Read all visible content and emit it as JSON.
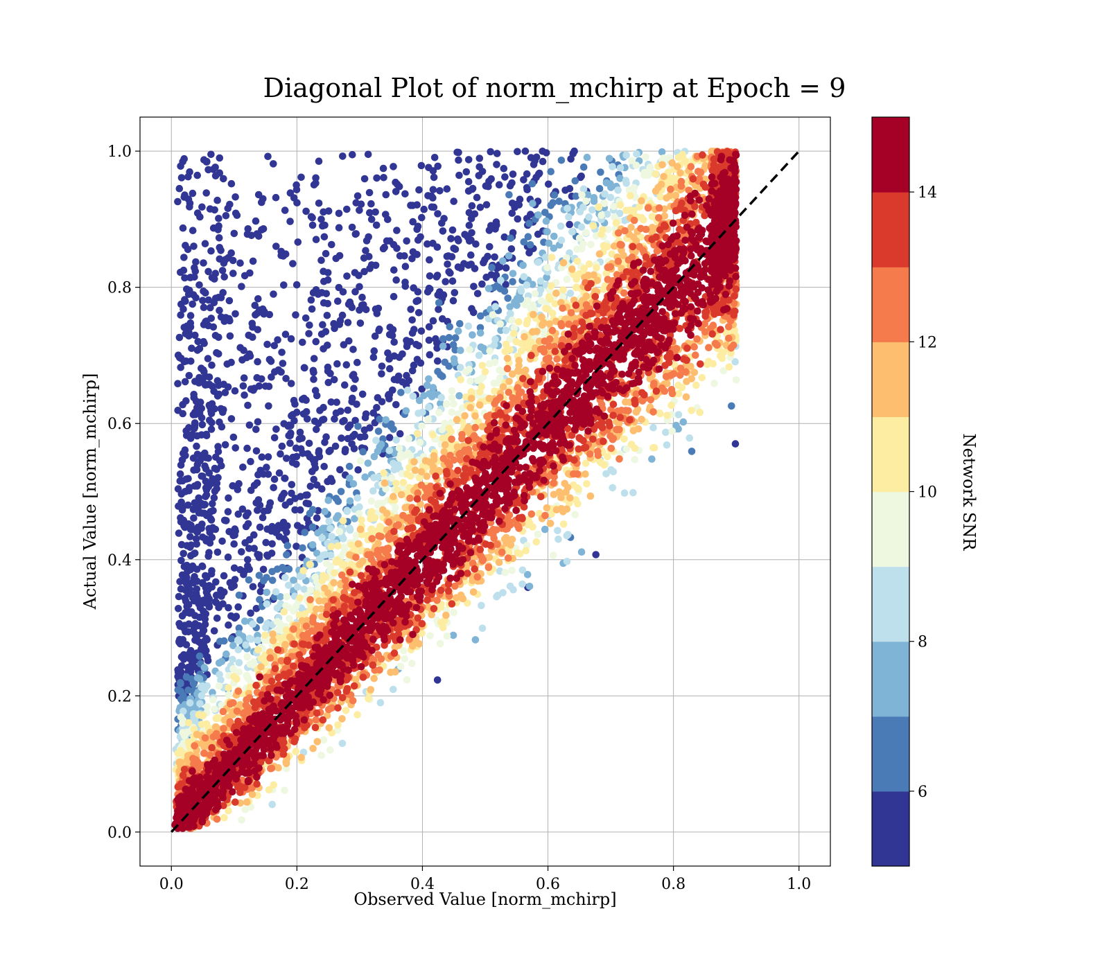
{
  "chart_data": {
    "type": "scatter",
    "title": "Diagonal Plot of norm_mchirp at Epoch = 9",
    "xlabel": "Observed Value [norm_mchirp]",
    "ylabel": "Actual Value [norm_mchirp]",
    "xlim": [
      -0.05,
      1.05
    ],
    "ylim": [
      -0.05,
      1.05
    ],
    "xticks": [
      "0.0",
      "0.2",
      "0.4",
      "0.6",
      "0.8",
      "1.0"
    ],
    "yticks": [
      "0.0",
      "0.2",
      "0.4",
      "0.6",
      "0.8",
      "1.0"
    ],
    "grid": true,
    "reference_line": {
      "style": "dashed",
      "color": "#000000",
      "from": [
        0,
        0
      ],
      "to": [
        1,
        1
      ]
    },
    "colorbar": {
      "label": "Network SNR",
      "range": [
        5,
        15
      ],
      "ticks": [
        "6",
        "8",
        "10",
        "12",
        "14"
      ],
      "tick_values": [
        6,
        8,
        10,
        12,
        14
      ],
      "colors": [
        "#313695",
        "#4575b4",
        "#74add1",
        "#abd9e9",
        "#e0f3f8",
        "#ffffbf",
        "#fee090",
        "#fdae61",
        "#f46d43",
        "#d73027",
        "#a50026"
      ],
      "discrete_bins": [
        "#313695",
        "#4a7bb7",
        "#7fb4d6",
        "#bde0ec",
        "#eef7e0",
        "#fdeda2",
        "#fdbe6f",
        "#f57a4c",
        "#da3a2c",
        "#a50026"
      ]
    },
    "series_description_points": {
      "x": [
        0.05,
        0.1,
        0.15,
        0.2,
        0.3,
        0.4,
        0.5,
        0.6,
        0.7,
        0.8,
        0.88
      ],
      "y": [
        0.05,
        0.1,
        0.15,
        0.2,
        0.3,
        0.4,
        0.5,
        0.6,
        0.7,
        0.8,
        0.9
      ],
      "snr": [
        15,
        15,
        15,
        15,
        15,
        15,
        15,
        15,
        15,
        15,
        14
      ]
    }
  }
}
